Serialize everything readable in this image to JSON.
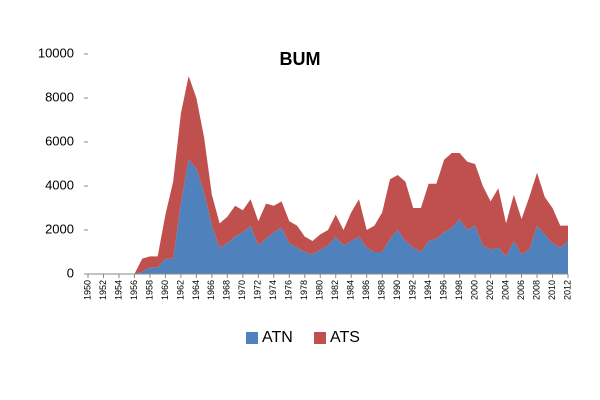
{
  "chart_data": {
    "type": "stacked-area",
    "title": "BUM",
    "x": [
      1950,
      1951,
      1952,
      1953,
      1954,
      1955,
      1956,
      1957,
      1958,
      1959,
      1960,
      1961,
      1962,
      1963,
      1964,
      1965,
      1966,
      1967,
      1968,
      1969,
      1970,
      1971,
      1972,
      1973,
      1974,
      1975,
      1976,
      1977,
      1978,
      1979,
      1980,
      1981,
      1982,
      1983,
      1984,
      1985,
      1986,
      1987,
      1988,
      1989,
      1990,
      1991,
      1992,
      1993,
      1994,
      1995,
      1996,
      1997,
      1998,
      1999,
      2000,
      2001,
      2002,
      2003,
      2004,
      2005,
      2006,
      2007,
      2008,
      2009,
      2010,
      2011,
      2012
    ],
    "series": [
      {
        "name": "ATN",
        "color": "#4f81bd",
        "values": [
          0,
          0,
          0,
          0,
          0,
          0,
          0,
          100,
          300,
          300,
          700,
          700,
          3200,
          5200,
          4800,
          3700,
          2200,
          1200,
          1400,
          1700,
          1900,
          2200,
          1300,
          1600,
          1900,
          2100,
          1400,
          1200,
          1000,
          900,
          1100,
          1300,
          1700,
          1300,
          1500,
          1700,
          1200,
          1000,
          1000,
          1600,
          2000,
          1500,
          1200,
          1000,
          1500,
          1600,
          1900,
          2100,
          2500,
          2000,
          2200,
          1300,
          1100,
          1200,
          800,
          1500,
          900,
          1100,
          2200,
          1800,
          1400,
          1200,
          1500
        ]
      },
      {
        "name": "ATS",
        "color": "#c0504d",
        "values": [
          0,
          0,
          0,
          0,
          0,
          0,
          0,
          600,
          500,
          500,
          2000,
          3500,
          4100,
          3800,
          3200,
          2500,
          1400,
          1100,
          1200,
          1400,
          1000,
          1200,
          1100,
          1600,
          1200,
          1200,
          1000,
          1000,
          700,
          600,
          700,
          700,
          1000,
          700,
          1300,
          1700,
          800,
          1200,
          1800,
          2700,
          2500,
          2700,
          1800,
          2000,
          2600,
          2500,
          3300,
          3400,
          3000,
          3100,
          2800,
          2700,
          2200,
          2700,
          1500,
          2100,
          1600,
          2400,
          2400,
          1700,
          1600,
          1000,
          700
        ]
      }
    ],
    "xlim": [
      1950,
      2012
    ],
    "xticks": [
      1950,
      1952,
      1954,
      1956,
      1958,
      1960,
      1962,
      1964,
      1966,
      1968,
      1970,
      1972,
      1974,
      1976,
      1978,
      1980,
      1982,
      1984,
      1986,
      1988,
      1990,
      1992,
      1994,
      1996,
      1998,
      2000,
      2002,
      2004,
      2006,
      2008,
      2010,
      2012
    ],
    "ylim": [
      0,
      10000
    ],
    "yticks": [
      0,
      2000,
      4000,
      6000,
      8000,
      10000
    ],
    "grid": false,
    "legend": "bottom"
  }
}
